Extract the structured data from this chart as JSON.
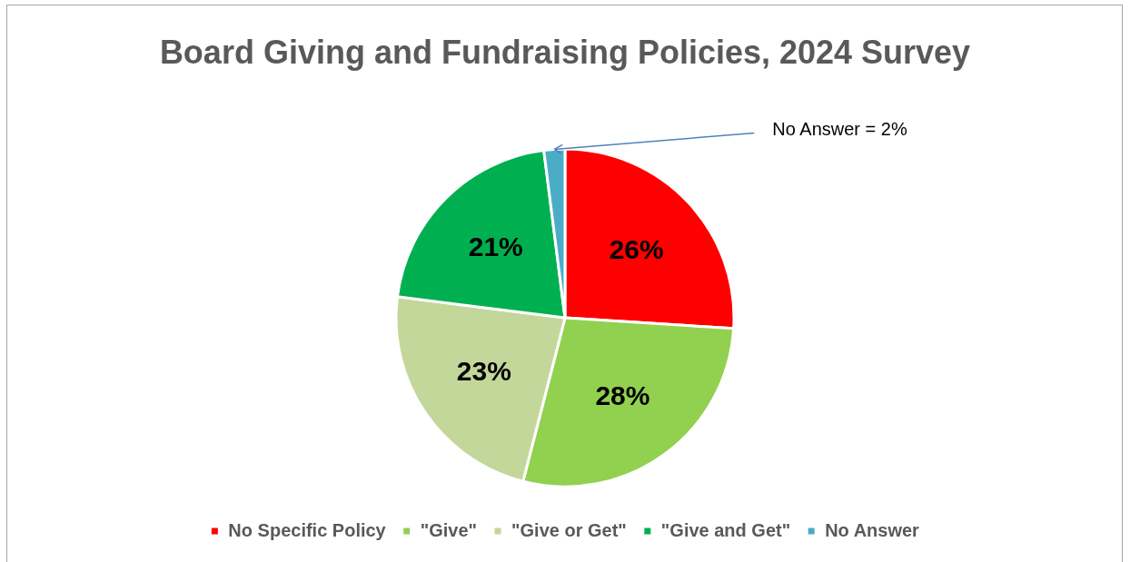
{
  "chart_data": {
    "type": "pie",
    "title": "Board Giving and Fundraising Policies, 2024 Survey",
    "categories": [
      "No Specific Policy",
      "\"Give\"",
      "\"Give or Get\"",
      "\"Give and Get\"",
      "No Answer"
    ],
    "values": [
      26,
      28,
      23,
      21,
      2
    ],
    "colors": [
      "#ff0000",
      "#92d050",
      "#c4d79b",
      "#00b050",
      "#4bacc6"
    ],
    "value_labels": [
      "26%",
      "28%",
      "23%",
      "21%",
      "No Answer = 2%"
    ],
    "legend": "bottom"
  }
}
